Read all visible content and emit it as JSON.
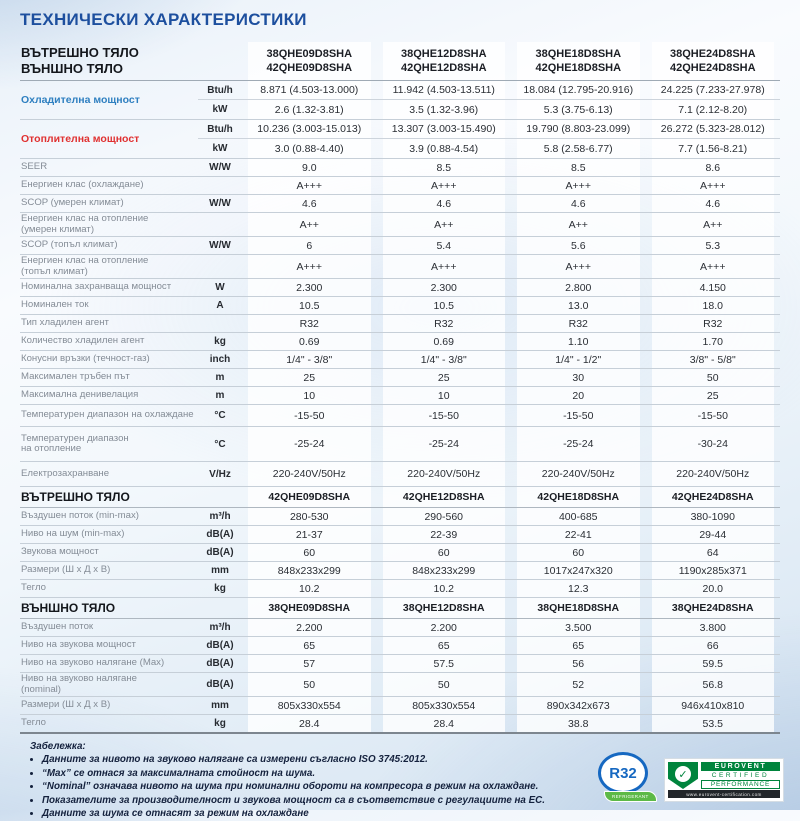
{
  "page": {
    "title": "ТЕХНИЧЕСКИ ХАРАКТЕРИСТИКИ"
  },
  "colors": {
    "title_blue": "#1d4f9e",
    "cooling_accent": "#2e7fc0",
    "heating_accent": "#e03131",
    "eurovent_green": "#00843d",
    "r32_blue": "#1668c1",
    "leaf_green": "#5cb947"
  },
  "table": {
    "header": {
      "label_line1": "ВЪТРЕШНО ТЯЛО",
      "label_line2": "ВЪНШНО ТЯЛО",
      "models": [
        {
          "line1": "38QHE09D8SHA",
          "line2": "42QHE09D8SHA"
        },
        {
          "line1": "38QHE12D8SHA",
          "line2": "42QHE12D8SHA"
        },
        {
          "line1": "38QHE18D8SHA",
          "line2": "42QHE18D8SHA"
        },
        {
          "line1": "38QHE24D8SHA",
          "line2": "42QHE24D8SHA"
        }
      ]
    },
    "rows": [
      {
        "type": "group",
        "label": "Охладителна мощност",
        "accent": "#2e7fc0",
        "subrows": [
          {
            "unit": "Btu/h",
            "values": [
              "8.871 (4.503-13.000)",
              "11.942 (4.503-13.511)",
              "18.084 (12.795-20.916)",
              "24.225 (7.233-27.978)"
            ]
          },
          {
            "unit": "kW",
            "values": [
              "2.6 (1.32-3.81)",
              "3.5 (1.32-3.96)",
              "5.3 (3.75-6.13)",
              "7.1 (2.12-8.20)"
            ]
          }
        ]
      },
      {
        "type": "group",
        "label": "Отоплителна мощност",
        "accent": "#e03131",
        "subrows": [
          {
            "unit": "Btu/h",
            "values": [
              "10.236 (3.003-15.013)",
              "13.307 (3.003-15.490)",
              "19.790 (8.803-23.099)",
              "26.272 (5.323-28.012)"
            ]
          },
          {
            "unit": "kW",
            "values": [
              "3.0 (0.88-4.40)",
              "3.9 (0.88-4.54)",
              "5.8 (2.58-6.77)",
              "7.7 (1.56-8.21)"
            ]
          }
        ]
      },
      {
        "label": "SEER",
        "unit": "W/W",
        "values": [
          "9.0",
          "8.5",
          "8.5",
          "8.6"
        ]
      },
      {
        "label": "Енергиен клас (охлаждане)",
        "unit": "",
        "values": [
          "A+++",
          "A+++",
          "A+++",
          "A+++"
        ]
      },
      {
        "label": "SCOP (умерен климат)",
        "unit": "W/W",
        "values": [
          "4.6",
          "4.6",
          "4.6",
          "4.6"
        ]
      },
      {
        "label": "Енергиен клас на отопление",
        "label2": "(умерен климат)",
        "unit": "",
        "values": [
          "A++",
          "A++",
          "A++",
          "A++"
        ]
      },
      {
        "label": "SCOP (топъл климат)",
        "unit": "W/W",
        "values": [
          "6",
          "5.4",
          "5.6",
          "5.3"
        ]
      },
      {
        "label": "Енергиен клас на отопление",
        "label2": "(топъл климат)",
        "unit": "",
        "values": [
          "A+++",
          "A+++",
          "A+++",
          "A+++"
        ]
      },
      {
        "label": "Номинална захранваща мощност",
        "unit": "W",
        "values": [
          "2.300",
          "2.300",
          "2.800",
          "4.150"
        ]
      },
      {
        "label": "Номинален ток",
        "unit": "A",
        "values": [
          "10.5",
          "10.5",
          "13.0",
          "18.0"
        ]
      },
      {
        "label": "Тип хладилен агент",
        "unit": "",
        "values": [
          "R32",
          "R32",
          "R32",
          "R32"
        ]
      },
      {
        "label": "Количество хладилен агент",
        "unit": "kg",
        "values": [
          "0.69",
          "0.69",
          "1.10",
          "1.70"
        ]
      },
      {
        "label": "Конусни връзки (течност-газ)",
        "unit": "inch",
        "values": [
          "1/4\" - 3/8\"",
          "1/4\" - 3/8\"",
          "1/4\" - 1/2\"",
          "3/8\" - 5/8\""
        ]
      },
      {
        "label": "Максимален тръбен път",
        "unit": "m",
        "values": [
          "25",
          "25",
          "30",
          "50"
        ]
      },
      {
        "label": "Максимална денивелация",
        "unit": "m",
        "values": [
          "10",
          "10",
          "20",
          "25"
        ]
      },
      {
        "label": "Температурен диапазон на охлаждане",
        "unit": "°C",
        "values": [
          "-15-50",
          "-15-50",
          "-15-50",
          "-15-50"
        ]
      },
      {
        "label": "Температурен диапазон",
        "label2": "на отопление",
        "unit": "°C",
        "values": [
          "-25-24",
          "-25-24",
          "-25-24",
          "-30-24"
        ]
      },
      {
        "label": "Електрозахранване",
        "unit": "V/Hz",
        "values": [
          "220-240V/50Hz",
          "220-240V/50Hz",
          "220-240V/50Hz",
          "220-240V/50Hz"
        ]
      },
      {
        "type": "section",
        "label": "ВЪТРЕШНО ТЯЛО",
        "values": [
          "42QHE09D8SHA",
          "42QHE12D8SHA",
          "42QHE18D8SHA",
          "42QHE24D8SHA"
        ]
      },
      {
        "label": "Въздушен поток (min-max)",
        "unit": "m³/h",
        "values": [
          "280-530",
          "290-560",
          "400-685",
          "380-1090"
        ]
      },
      {
        "label": "Ниво на шум  (min-max)",
        "unit": "dB(A)",
        "values": [
          "21-37",
          "22-39",
          "22-41",
          "29-44"
        ]
      },
      {
        "label": "Звукова мощност",
        "unit": "dB(A)",
        "values": [
          "60",
          "60",
          "60",
          "64"
        ]
      },
      {
        "label": "Размери (Ш х Д х В)",
        "unit": "mm",
        "values": [
          "848x233x299",
          "848x233x299",
          "1017x247x320",
          "1190x285x371"
        ]
      },
      {
        "label": "Тегло",
        "unit": "kg",
        "values": [
          "10.2",
          "10.2",
          "12.3",
          "20.0"
        ]
      },
      {
        "type": "section",
        "label": "ВЪНШНО ТЯЛО",
        "values": [
          "38QHE09D8SHA",
          "38QHE12D8SHA",
          "38QHE18D8SHA",
          "38QHE24D8SHA"
        ]
      },
      {
        "label": "Въздушен поток",
        "unit": "m³/h",
        "values": [
          "2.200",
          "2.200",
          "3.500",
          "3.800"
        ]
      },
      {
        "label": "Ниво на звукова мощност",
        "unit": "dB(A)",
        "values": [
          "65",
          "65",
          "65",
          "66"
        ]
      },
      {
        "label": "Ниво на звуково налягане (Max)",
        "unit": "dB(A)",
        "values": [
          "57",
          "57.5",
          "56",
          "59.5"
        ]
      },
      {
        "label": "Ниво на звуково налягане",
        "label2": "(nominal)",
        "unit": "dB(A)",
        "values": [
          "50",
          "50",
          "52",
          "56.8"
        ]
      },
      {
        "label": "Размери (Ш х Д х В)",
        "unit": "mm",
        "values": [
          "805x330x554",
          "805x330x554",
          "890x342x673",
          "946x410x810"
        ]
      },
      {
        "label": "Тегло",
        "unit": "kg",
        "values": [
          "28.4",
          "28.4",
          "38.8",
          "53.5"
        ]
      }
    ]
  },
  "notes": {
    "title": "Забележка:",
    "items": [
      "Данните за нивото на звуково налягане са измерени съгласно ISO 3745:2012.",
      "“Max” се отнася за максималната стойност на шума.",
      "“Nominal” означава нивото на шума при номинални обороти на компресора в режим на охлаждане.",
      "Показателите за производителност и звукова мощност са в съответствие с регулациите на ЕС.",
      "Данните за шума се отнасят за режим на охлаждане"
    ]
  },
  "logos": {
    "r32": {
      "label": "R32",
      "sublabel": "REFRIGERANT"
    },
    "eurovent": {
      "line1": "EUROVENT",
      "line2": "CERTIFIED",
      "line3": "PERFORMANCE",
      "url": "www.eurovent-certification.com",
      "check": "✓"
    }
  }
}
